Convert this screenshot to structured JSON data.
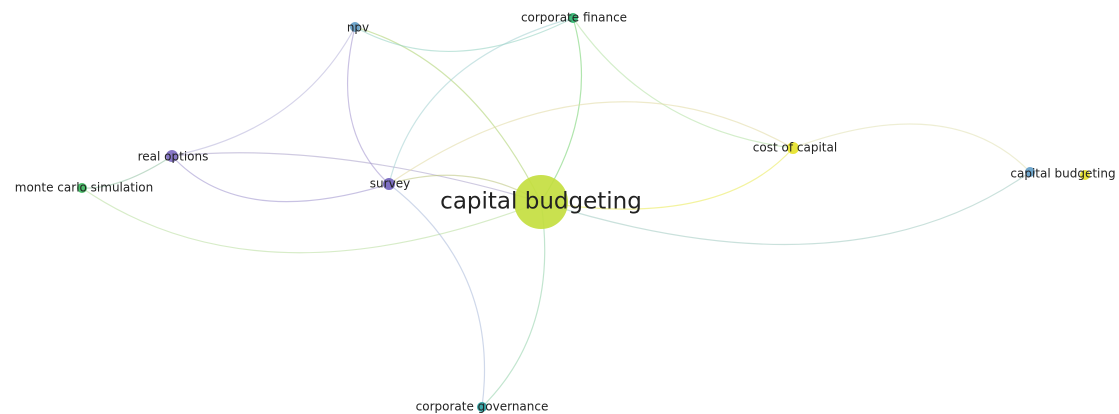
{
  "nodes": [
    {
      "label": "capital budgeting"
    },
    {
      "label": "npv"
    },
    {
      "label": "corporate finance"
    },
    {
      "label": "real options"
    },
    {
      "label": "monte carlo simulation"
    },
    {
      "label": "survey"
    },
    {
      "label": "cost of capital"
    },
    {
      "label": "capital budgeting"
    },
    {
      "label": "corporate governance"
    }
  ]
}
